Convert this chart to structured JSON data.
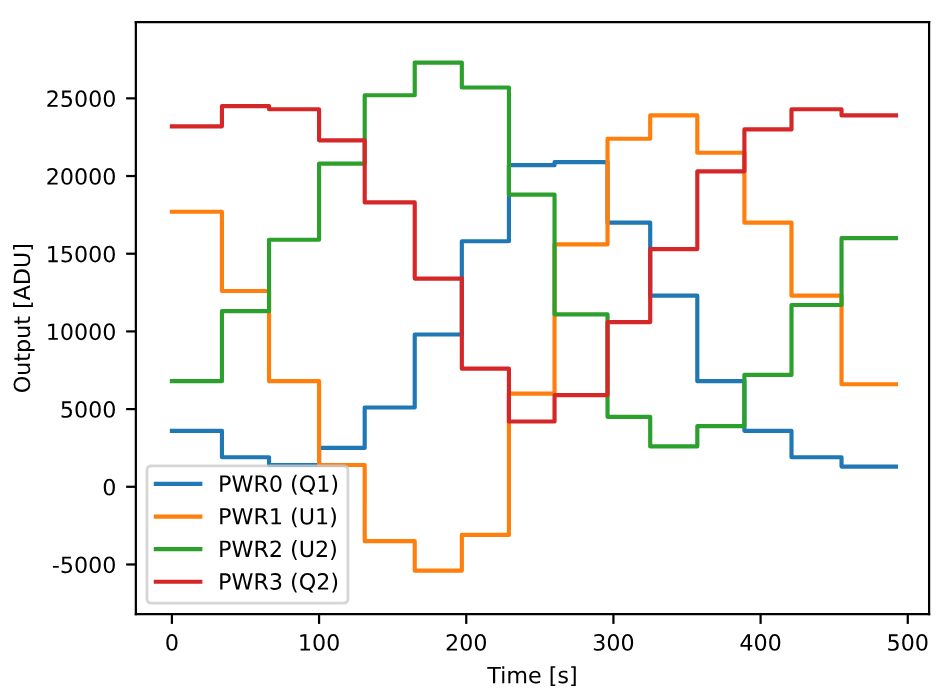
{
  "chart_data": {
    "type": "line",
    "xlabel": "Time [s]",
    "ylabel": "Output [ADU]",
    "x": [
      0,
      34,
      34,
      66,
      66,
      100,
      100,
      131,
      131,
      165,
      165,
      197,
      197,
      229,
      229,
      260,
      260,
      296,
      296,
      325,
      325,
      357,
      357,
      389,
      389,
      421,
      421,
      455,
      455,
      492
    ],
    "series": [
      {
        "name": "PWR0 (Q1)",
        "color": "#1f77b4",
        "values": [
          3600,
          3600,
          1900,
          1900,
          1400,
          1400,
          2500,
          2500,
          5100,
          5100,
          9800,
          9800,
          15800,
          15800,
          20700,
          20700,
          20900,
          20900,
          17000,
          17000,
          12300,
          12300,
          6800,
          6800,
          3600,
          3600,
          1900,
          1900,
          1300,
          1300
        ]
      },
      {
        "name": "PWR1 (U1)",
        "color": "#ff7f0e",
        "values": [
          17700,
          17700,
          12600,
          12600,
          6800,
          6800,
          1400,
          1400,
          -3500,
          -3500,
          -5400,
          -5400,
          -3100,
          -3100,
          6000,
          6000,
          15600,
          15600,
          22400,
          22400,
          23900,
          23900,
          21500,
          21500,
          17000,
          17000,
          12300,
          12300,
          6600,
          6600
        ]
      },
      {
        "name": "PWR2 (U2)",
        "color": "#2ca02c",
        "values": [
          6800,
          6800,
          11300,
          11300,
          15900,
          15900,
          20800,
          20800,
          25200,
          25200,
          27300,
          27300,
          25700,
          25700,
          18800,
          18800,
          11100,
          11100,
          4500,
          4500,
          2600,
          2600,
          3900,
          3900,
          7200,
          7200,
          11700,
          11700,
          16000,
          16000
        ]
      },
      {
        "name": "PWR3 (Q2)",
        "color": "#d62728",
        "values": [
          23200,
          23200,
          24500,
          24500,
          24300,
          24300,
          22300,
          22300,
          18300,
          18300,
          13400,
          13400,
          7600,
          7600,
          4200,
          4200,
          5900,
          5900,
          10600,
          10600,
          15300,
          15300,
          20300,
          20300,
          23000,
          23000,
          24300,
          24300,
          23900,
          23900
        ]
      }
    ],
    "xlim": [
      -24.5,
      514.5
    ],
    "ylim": [
      -8200,
      29900
    ],
    "xticks": [
      0,
      100,
      200,
      300,
      400,
      500
    ],
    "yticks": [
      -5000,
      0,
      5000,
      10000,
      15000,
      20000,
      25000
    ],
    "legend": "lower left",
    "grid": false
  }
}
